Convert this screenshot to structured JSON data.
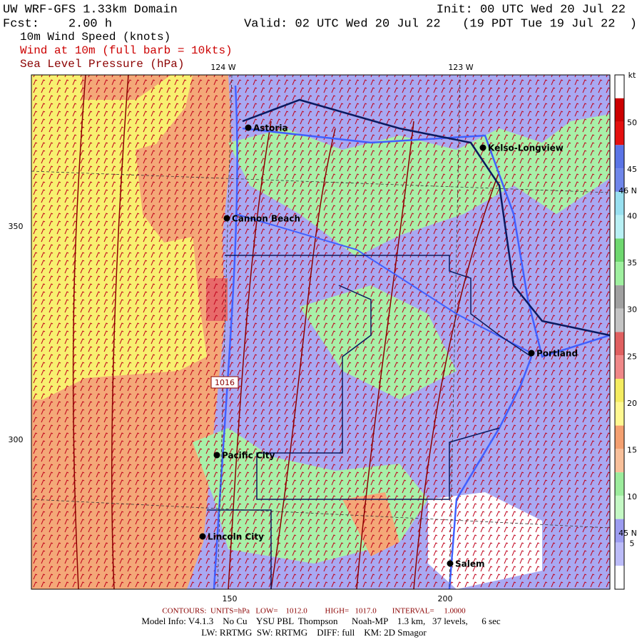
{
  "header": {
    "title": "UW WRF-GFS 1.33km Domain",
    "init": "Init: 00 UTC Wed 20 Jul 22",
    "fcst": "Fcst:    2.00 h",
    "valid": "Valid: 02 UTC Wed 20 Jul 22   (19 PDT Tue 19 Jul 22  )",
    "field": "10m Wind Speed (knots)",
    "wind": "Wind at 10m (full barb = 10kts)",
    "pressure": "Sea Level Pressure (hPa)"
  },
  "map": {
    "lon_labels": [
      "124 W",
      "123 W"
    ],
    "lat_labels": [
      "46 N",
      "45 N"
    ],
    "y_ticks": [
      "350",
      "300"
    ],
    "x_ticks": [
      "150",
      "200"
    ],
    "contour_label": "1016",
    "cities": [
      "Astoria",
      "Kelso-Longview",
      "Cannon Beach",
      "Portland",
      "Pacific City",
      "Lincoln City",
      "Salem"
    ]
  },
  "colorbar": {
    "unit": "kt",
    "labels": [
      "50",
      "45",
      "40",
      "35",
      "30",
      "25",
      "20",
      "15",
      "10",
      "5"
    ]
  },
  "footer": {
    "contours": "CONTOURS:  UNITS=hPa   LOW=    1012.0         HIGH=   1017.0        INTERVAL=     1.0000",
    "model": "Model Info: V4.1.3    No Cu    YSU PBL  Thompson      Noah-MP    1.3 km,   37 levels,      6 sec",
    "physics": "LW: RRTMG  SW: RRTMG    DIFF: full    KM: 2D Smagor"
  }
}
